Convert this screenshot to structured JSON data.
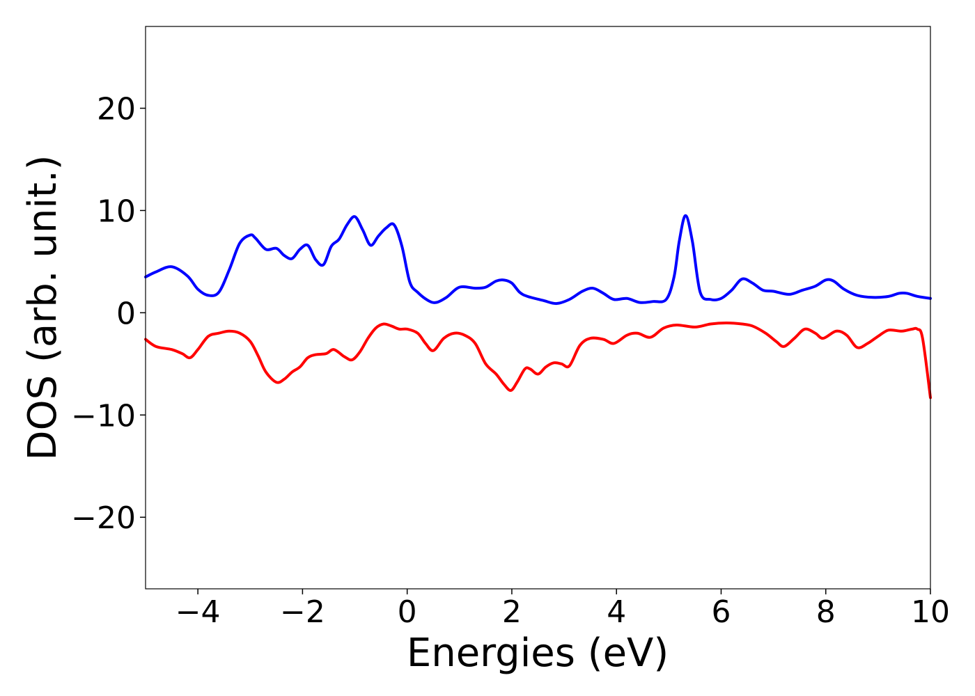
{
  "chart_data": {
    "type": "line",
    "title": "",
    "xlabel": "Energies (eV)",
    "ylabel": "DOS (arb. unit.)",
    "xlim": [
      -5,
      10
    ],
    "ylim": [
      -27,
      28
    ],
    "xticks": [
      -4,
      -2,
      0,
      2,
      4,
      6,
      8,
      10
    ],
    "yticks": [
      -20,
      -10,
      0,
      10,
      20
    ],
    "xtick_labels": [
      "−4",
      "−2",
      "0",
      "2",
      "4",
      "6",
      "8",
      "10"
    ],
    "ytick_labels": [
      "−20",
      "−10",
      "0",
      "10",
      "20"
    ],
    "grid": false,
    "legend": "none",
    "series": [
      {
        "color": "#0000ff",
        "x": [
          -5.0,
          -4.8,
          -4.5,
          -4.2,
          -4.0,
          -3.8,
          -3.6,
          -3.4,
          -3.2,
          -3.0,
          -2.9,
          -2.7,
          -2.5,
          -2.35,
          -2.2,
          -2.05,
          -1.9,
          -1.75,
          -1.6,
          -1.45,
          -1.3,
          -1.15,
          -1.0,
          -0.85,
          -0.7,
          -0.55,
          -0.4,
          -0.25,
          -0.1,
          0.05,
          0.2,
          0.4,
          0.55,
          0.75,
          1.0,
          1.3,
          1.5,
          1.7,
          1.85,
          2.0,
          2.15,
          2.3,
          2.6,
          2.85,
          3.1,
          3.35,
          3.55,
          3.75,
          3.95,
          4.2,
          4.45,
          4.7,
          4.95,
          5.1,
          5.2,
          5.32,
          5.45,
          5.6,
          5.8,
          6.0,
          6.2,
          6.4,
          6.6,
          6.8,
          7.0,
          7.3,
          7.55,
          7.8,
          8.0,
          8.15,
          8.35,
          8.6,
          8.9,
          9.2,
          9.4,
          9.55,
          9.75,
          10.0
        ],
        "y": [
          3.5,
          4.0,
          4.5,
          3.6,
          2.3,
          1.7,
          2.0,
          4.2,
          6.8,
          7.6,
          7.3,
          6.2,
          6.3,
          5.6,
          5.3,
          6.2,
          6.6,
          5.2,
          4.7,
          6.5,
          7.2,
          8.6,
          9.4,
          8.1,
          6.6,
          7.5,
          8.3,
          8.6,
          6.5,
          3.0,
          2.0,
          1.2,
          1.0,
          1.5,
          2.5,
          2.4,
          2.5,
          3.1,
          3.2,
          2.9,
          2.0,
          1.6,
          1.2,
          0.9,
          1.3,
          2.1,
          2.4,
          1.9,
          1.3,
          1.4,
          1.0,
          1.1,
          1.3,
          3.5,
          7.0,
          9.5,
          7.0,
          2.0,
          1.3,
          1.4,
          2.2,
          3.3,
          2.9,
          2.2,
          2.1,
          1.8,
          2.2,
          2.6,
          3.2,
          3.1,
          2.3,
          1.7,
          1.5,
          1.6,
          1.9,
          1.9,
          1.6,
          1.4
        ]
      },
      {
        "color": "#ff0000",
        "x": [
          -5.0,
          -4.8,
          -4.5,
          -4.3,
          -4.15,
          -4.0,
          -3.8,
          -3.6,
          -3.4,
          -3.2,
          -3.0,
          -2.85,
          -2.7,
          -2.5,
          -2.35,
          -2.2,
          -2.05,
          -1.9,
          -1.75,
          -1.55,
          -1.4,
          -1.2,
          -1.05,
          -0.9,
          -0.75,
          -0.6,
          -0.45,
          -0.3,
          -0.15,
          0.0,
          0.2,
          0.35,
          0.5,
          0.7,
          0.9,
          1.1,
          1.3,
          1.5,
          1.7,
          1.85,
          1.98,
          2.1,
          2.25,
          2.35,
          2.5,
          2.65,
          2.8,
          2.95,
          3.1,
          3.3,
          3.5,
          3.75,
          3.95,
          4.2,
          4.4,
          4.65,
          4.9,
          5.15,
          5.5,
          5.8,
          6.1,
          6.4,
          6.6,
          6.85,
          7.05,
          7.2,
          7.4,
          7.6,
          7.8,
          7.95,
          8.2,
          8.4,
          8.6,
          8.8,
          9.0,
          9.2,
          9.45,
          9.65,
          9.75,
          9.85,
          10.0
        ],
        "y": [
          -2.6,
          -3.3,
          -3.6,
          -4.0,
          -4.4,
          -3.6,
          -2.3,
          -2.0,
          -1.8,
          -2.0,
          -2.8,
          -4.2,
          -5.8,
          -6.8,
          -6.5,
          -5.8,
          -5.3,
          -4.4,
          -4.1,
          -4.0,
          -3.6,
          -4.3,
          -4.6,
          -3.8,
          -2.5,
          -1.5,
          -1.1,
          -1.3,
          -1.6,
          -1.6,
          -2.0,
          -3.0,
          -3.7,
          -2.5,
          -2.0,
          -2.2,
          -3.0,
          -5.0,
          -6.0,
          -7.0,
          -7.6,
          -6.8,
          -5.5,
          -5.5,
          -6.0,
          -5.3,
          -4.9,
          -5.0,
          -5.2,
          -3.2,
          -2.5,
          -2.6,
          -3.0,
          -2.2,
          -2.0,
          -2.4,
          -1.5,
          -1.2,
          -1.4,
          -1.1,
          -1.0,
          -1.1,
          -1.3,
          -2.0,
          -2.8,
          -3.3,
          -2.5,
          -1.6,
          -2.0,
          -2.5,
          -1.8,
          -2.2,
          -3.4,
          -3.0,
          -2.3,
          -1.7,
          -1.8,
          -1.6,
          -1.6,
          -2.5,
          -8.3
        ]
      }
    ]
  }
}
